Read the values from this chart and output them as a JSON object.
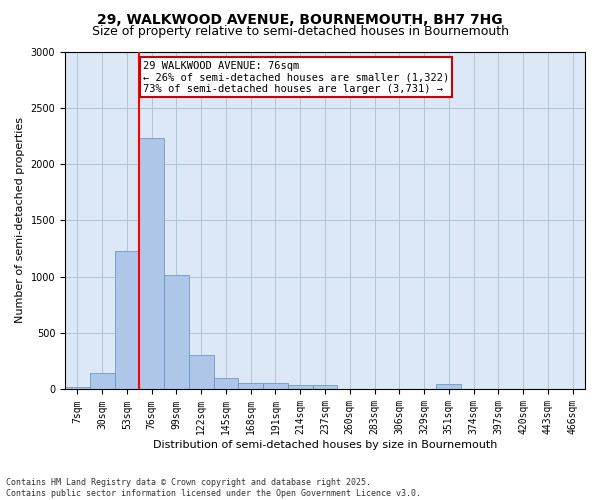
{
  "title1": "29, WALKWOOD AVENUE, BOURNEMOUTH, BH7 7HG",
  "title2": "Size of property relative to semi-detached houses in Bournemouth",
  "xlabel": "Distribution of semi-detached houses by size in Bournemouth",
  "ylabel": "Number of semi-detached properties",
  "footnote1": "Contains HM Land Registry data © Crown copyright and database right 2025.",
  "footnote2": "Contains public sector information licensed under the Open Government Licence v3.0.",
  "categories": [
    "7sqm",
    "30sqm",
    "53sqm",
    "76sqm",
    "99sqm",
    "122sqm",
    "145sqm",
    "168sqm",
    "191sqm",
    "214sqm",
    "237sqm",
    "260sqm",
    "283sqm",
    "306sqm",
    "329sqm",
    "351sqm",
    "374sqm",
    "397sqm",
    "420sqm",
    "443sqm",
    "466sqm"
  ],
  "values": [
    20,
    150,
    1230,
    2230,
    1020,
    310,
    100,
    60,
    60,
    40,
    40,
    0,
    0,
    0,
    0,
    50,
    0,
    0,
    0,
    0,
    0
  ],
  "bar_color": "#aec6e8",
  "bar_edge_color": "#5a8fc2",
  "red_line_index": 3,
  "annotation_line1": "29 WALKWOOD AVENUE: 76sqm",
  "annotation_line2": "← 26% of semi-detached houses are smaller (1,322)",
  "annotation_line3": "73% of semi-detached houses are larger (3,731) →",
  "annotation_box_facecolor": "#ffffff",
  "annotation_box_edgecolor": "#cc0000",
  "ylim": [
    0,
    3000
  ],
  "yticks": [
    0,
    500,
    1000,
    1500,
    2000,
    2500,
    3000
  ],
  "background_color": "#ffffff",
  "plot_bg_color": "#dce8f5",
  "grid_color": "#b0c4d8",
  "title1_fontsize": 10,
  "title2_fontsize": 9,
  "axis_label_fontsize": 8,
  "tick_fontsize": 7,
  "annotation_fontsize": 7.5,
  "footnote_fontsize": 6
}
